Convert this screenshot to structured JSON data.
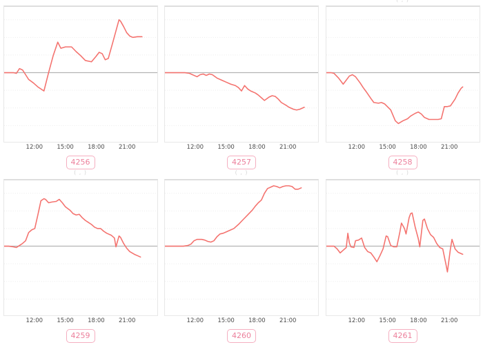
{
  "colors": {
    "line": "#f4726e",
    "zero_line": "#b3b3b3",
    "gridline": "#ebebeb",
    "plot_border": "#e7e7e7",
    "tick_text": "#4b4b4b",
    "badge_text": "#ec7f9b",
    "badge_border": "#f5aec0",
    "background": "#ffffff"
  },
  "axis_note": "x in percent of plot width; ticks 12:00→20%, 15:00→40%, 18:00→60%, 21:00→80% (≈3h per 20%); y in relative units, solid gray baseline = 0, faint dotted gridlines every ≈26 units; no y-axis labels shown",
  "chart_data": [
    {
      "type": "line",
      "badge": "4256",
      "caption_fragment": "",
      "x_ticks": [
        {
          "label": "12:00",
          "pct": 20
        },
        {
          "label": "15:00",
          "pct": 40
        },
        {
          "label": "18:00",
          "pct": 60
        },
        {
          "label": "21:00",
          "pct": 80
        }
      ],
      "baseline": 0,
      "points": [
        [
          0,
          0
        ],
        [
          6,
          0
        ],
        [
          8,
          -1
        ],
        [
          10,
          6
        ],
        [
          12,
          4
        ],
        [
          14,
          -3
        ],
        [
          16,
          -10
        ],
        [
          19,
          -15
        ],
        [
          22,
          -21
        ],
        [
          26,
          -27
        ],
        [
          29,
          0
        ],
        [
          32,
          25
        ],
        [
          35,
          45
        ],
        [
          37,
          36
        ],
        [
          40,
          38
        ],
        [
          44,
          38
        ],
        [
          47,
          31
        ],
        [
          50,
          25
        ],
        [
          53,
          18
        ],
        [
          57,
          16
        ],
        [
          60,
          24
        ],
        [
          62,
          30
        ],
        [
          64,
          28
        ],
        [
          66,
          19
        ],
        [
          68,
          21
        ],
        [
          71,
          45
        ],
        [
          74,
          70
        ],
        [
          75,
          78
        ],
        [
          76,
          76
        ],
        [
          78,
          68
        ],
        [
          80,
          59
        ],
        [
          82,
          54
        ],
        [
          84,
          52
        ],
        [
          87,
          53
        ],
        [
          90,
          53
        ]
      ]
    },
    {
      "type": "line",
      "badge": "4257",
      "caption_fragment": "",
      "x_ticks": [
        {
          "label": "12:00",
          "pct": 20
        },
        {
          "label": "15:00",
          "pct": 40
        },
        {
          "label": "18:00",
          "pct": 60
        },
        {
          "label": "21:00",
          "pct": 80
        }
      ],
      "baseline": 0,
      "points": [
        [
          0,
          0
        ],
        [
          8,
          0
        ],
        [
          13,
          0
        ],
        [
          16,
          -1
        ],
        [
          18,
          -3
        ],
        [
          21,
          -6
        ],
        [
          23,
          -3
        ],
        [
          25,
          -2
        ],
        [
          27,
          -4
        ],
        [
          29,
          -2
        ],
        [
          31,
          -3
        ],
        [
          34,
          -8
        ],
        [
          37,
          -11
        ],
        [
          40,
          -14
        ],
        [
          43,
          -17
        ],
        [
          46,
          -19
        ],
        [
          48,
          -22
        ],
        [
          50,
          -27
        ],
        [
          52,
          -19
        ],
        [
          54,
          -24
        ],
        [
          56,
          -27
        ],
        [
          59,
          -30
        ],
        [
          61,
          -33
        ],
        [
          63,
          -37
        ],
        [
          65,
          -41
        ],
        [
          68,
          -36
        ],
        [
          70,
          -34
        ],
        [
          72,
          -35
        ],
        [
          74,
          -39
        ],
        [
          76,
          -44
        ],
        [
          79,
          -48
        ],
        [
          81,
          -51
        ],
        [
          84,
          -54
        ],
        [
          86,
          -55
        ],
        [
          88,
          -54
        ],
        [
          90,
          -52
        ],
        [
          91,
          -51
        ]
      ]
    },
    {
      "type": "line",
      "badge": "4258",
      "caption_fragment": "( , )",
      "x_ticks": [
        {
          "label": "12:00",
          "pct": 20
        },
        {
          "label": "15:00",
          "pct": 40
        },
        {
          "label": "18:00",
          "pct": 60
        },
        {
          "label": "21:00",
          "pct": 80
        }
      ],
      "baseline": 0,
      "points": [
        [
          0,
          0
        ],
        [
          3,
          0
        ],
        [
          5,
          -1
        ],
        [
          8,
          -8
        ],
        [
          11,
          -17
        ],
        [
          13,
          -11
        ],
        [
          15,
          -5
        ],
        [
          17,
          -3
        ],
        [
          19,
          -6
        ],
        [
          22,
          -15
        ],
        [
          24,
          -22
        ],
        [
          26,
          -28
        ],
        [
          29,
          -38
        ],
        [
          31,
          -44
        ],
        [
          34,
          -45
        ],
        [
          36,
          -44
        ],
        [
          38,
          -46
        ],
        [
          42,
          -55
        ],
        [
          45,
          -71
        ],
        [
          47,
          -75
        ],
        [
          50,
          -71
        ],
        [
          53,
          -68
        ],
        [
          55,
          -64
        ],
        [
          58,
          -60
        ],
        [
          60,
          -58
        ],
        [
          62,
          -61
        ],
        [
          64,
          -66
        ],
        [
          67,
          -69
        ],
        [
          70,
          -69
        ],
        [
          73,
          -69
        ],
        [
          75,
          -68
        ],
        [
          77,
          -50
        ],
        [
          79,
          -50
        ],
        [
          81,
          -49
        ],
        [
          84,
          -39
        ],
        [
          86,
          -30
        ],
        [
          88,
          -23
        ],
        [
          89,
          -21
        ]
      ]
    },
    {
      "type": "line",
      "badge": "4259",
      "caption_fragment": "( , )",
      "x_ticks": [
        {
          "label": "12:00",
          "pct": 20
        },
        {
          "label": "15:00",
          "pct": 40
        },
        {
          "label": "18:00",
          "pct": 60
        },
        {
          "label": "21:00",
          "pct": 80
        }
      ],
      "baseline": 0,
      "points": [
        [
          0,
          0
        ],
        [
          3,
          0
        ],
        [
          6,
          -1
        ],
        [
          8,
          -2
        ],
        [
          10,
          1
        ],
        [
          12,
          4
        ],
        [
          14,
          8
        ],
        [
          16,
          20
        ],
        [
          18,
          24
        ],
        [
          20,
          26
        ],
        [
          22,
          46
        ],
        [
          24,
          67
        ],
        [
          26,
          70
        ],
        [
          27,
          69
        ],
        [
          29,
          64
        ],
        [
          31,
          65
        ],
        [
          34,
          66
        ],
        [
          36,
          69
        ],
        [
          38,
          64
        ],
        [
          40,
          58
        ],
        [
          43,
          53
        ],
        [
          45,
          48
        ],
        [
          47,
          46
        ],
        [
          49,
          47
        ],
        [
          51,
          42
        ],
        [
          53,
          38
        ],
        [
          55,
          35
        ],
        [
          57,
          32
        ],
        [
          59,
          28
        ],
        [
          61,
          26
        ],
        [
          63,
          26
        ],
        [
          65,
          22
        ],
        [
          67,
          19
        ],
        [
          70,
          16
        ],
        [
          72,
          12
        ],
        [
          73,
          -1
        ],
        [
          75,
          15
        ],
        [
          76,
          13
        ],
        [
          78,
          4
        ],
        [
          80,
          -3
        ],
        [
          82,
          -8
        ],
        [
          85,
          -12
        ],
        [
          87,
          -14
        ],
        [
          89,
          -16
        ]
      ]
    },
    {
      "type": "line",
      "badge": "4260",
      "caption_fragment": "( , )",
      "x_ticks": [
        {
          "label": "12:00",
          "pct": 20
        },
        {
          "label": "15:00",
          "pct": 40
        },
        {
          "label": "18:00",
          "pct": 60
        },
        {
          "label": "21:00",
          "pct": 80
        }
      ],
      "baseline": 0,
      "points": [
        [
          0,
          0
        ],
        [
          8,
          0
        ],
        [
          12,
          0
        ],
        [
          15,
          1
        ],
        [
          17,
          3
        ],
        [
          19,
          8
        ],
        [
          21,
          10
        ],
        [
          24,
          10
        ],
        [
          26,
          9
        ],
        [
          28,
          7
        ],
        [
          30,
          6
        ],
        [
          32,
          8
        ],
        [
          34,
          14
        ],
        [
          36,
          18
        ],
        [
          38,
          19
        ],
        [
          40,
          21
        ],
        [
          42,
          23
        ],
        [
          45,
          26
        ],
        [
          48,
          32
        ],
        [
          51,
          39
        ],
        [
          54,
          46
        ],
        [
          57,
          53
        ],
        [
          59,
          59
        ],
        [
          61,
          64
        ],
        [
          63,
          68
        ],
        [
          65,
          78
        ],
        [
          67,
          85
        ],
        [
          69,
          87
        ],
        [
          71,
          89
        ],
        [
          73,
          88
        ],
        [
          75,
          86
        ],
        [
          77,
          88
        ],
        [
          79,
          89
        ],
        [
          81,
          89
        ],
        [
          83,
          88
        ],
        [
          85,
          84
        ],
        [
          87,
          84
        ],
        [
          89,
          86
        ]
      ]
    },
    {
      "type": "line",
      "badge": "4261",
      "caption_fragment": "( , )",
      "x_ticks": [
        {
          "label": "12:00",
          "pct": 20
        },
        {
          "label": "15:00",
          "pct": 40
        },
        {
          "label": "18:00",
          "pct": 60
        },
        {
          "label": "21:00",
          "pct": 80
        }
      ],
      "baseline": 0,
      "points": [
        [
          0,
          0
        ],
        [
          5,
          0
        ],
        [
          7,
          -4
        ],
        [
          9,
          -10
        ],
        [
          11,
          -6
        ],
        [
          13,
          -2
        ],
        [
          14,
          19
        ],
        [
          15,
          5
        ],
        [
          16,
          -1
        ],
        [
          18,
          -2
        ],
        [
          19,
          8
        ],
        [
          21,
          9
        ],
        [
          23,
          12
        ],
        [
          25,
          -2
        ],
        [
          27,
          -8
        ],
        [
          29,
          -10
        ],
        [
          31,
          -16
        ],
        [
          33,
          -23
        ],
        [
          35,
          -14
        ],
        [
          37,
          -4
        ],
        [
          39,
          15
        ],
        [
          40,
          14
        ],
        [
          42,
          1
        ],
        [
          44,
          -1
        ],
        [
          46,
          -1
        ],
        [
          48,
          21
        ],
        [
          49,
          34
        ],
        [
          51,
          26
        ],
        [
          52,
          18
        ],
        [
          54,
          42
        ],
        [
          55,
          48
        ],
        [
          56,
          49
        ],
        [
          58,
          28
        ],
        [
          60,
          11
        ],
        [
          61,
          -1
        ],
        [
          63,
          38
        ],
        [
          64,
          40
        ],
        [
          66,
          26
        ],
        [
          68,
          17
        ],
        [
          70,
          13
        ],
        [
          72,
          4
        ],
        [
          74,
          -2
        ],
        [
          76,
          -4
        ],
        [
          78,
          -26
        ],
        [
          79,
          -38
        ],
        [
          81,
          -4
        ],
        [
          82,
          10
        ],
        [
          84,
          -4
        ],
        [
          86,
          -9
        ],
        [
          88,
          -11
        ],
        [
          89,
          -12
        ]
      ]
    }
  ]
}
